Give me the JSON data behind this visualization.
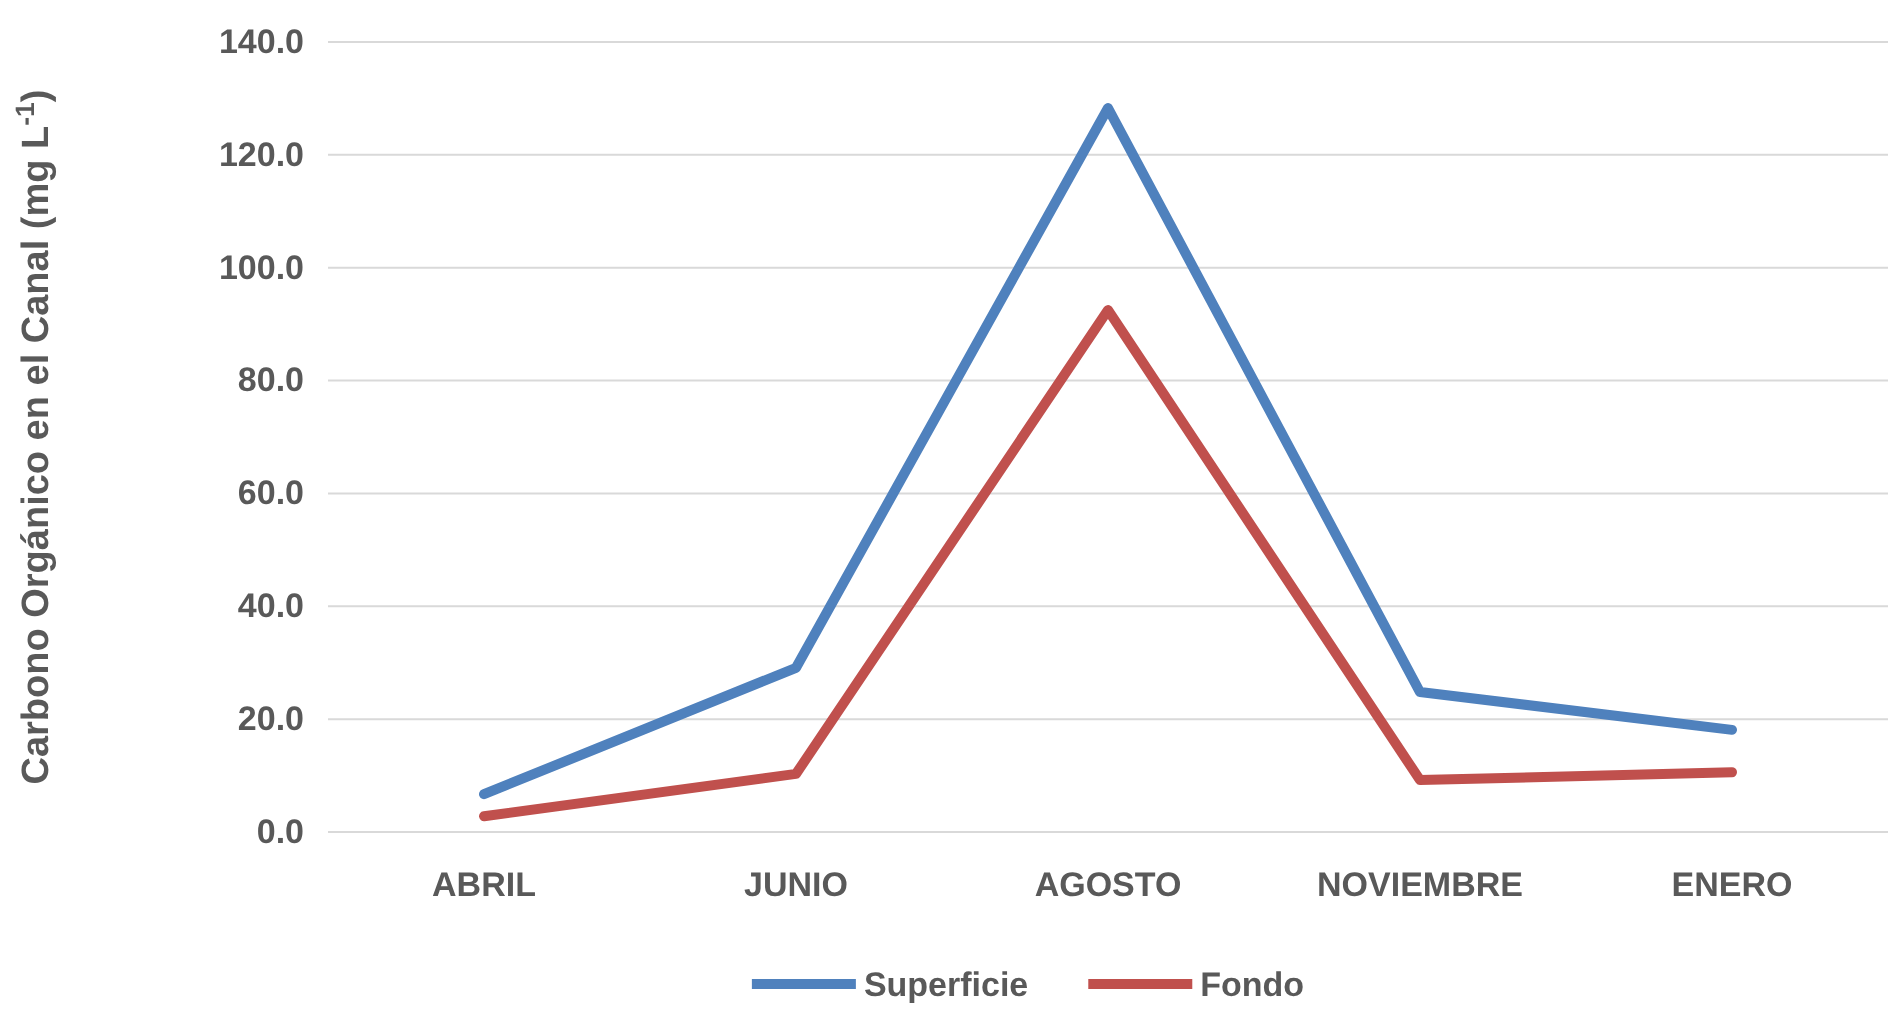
{
  "chart_data": {
    "type": "line",
    "ylabel": "Carbono Orgánico en el Canal (mg L$^{-1}$)",
    "categories": [
      "ABRIL",
      "JUNIO",
      "AGOSTO",
      "NOVIEMBRE",
      "ENERO"
    ],
    "series": [
      {
        "name": "Superficie",
        "color": "#4f81bd",
        "values": [
          6.7,
          29.1,
          128.3,
          24.8,
          18.1
        ]
      },
      {
        "name": "Fondo",
        "color": "#c0504d",
        "values": [
          2.8,
          10.3,
          92.5,
          9.2,
          10.6
        ]
      }
    ],
    "ylim": [
      0,
      140
    ],
    "yticks": [
      {
        "value": 0,
        "label": "0.0"
      },
      {
        "value": 20,
        "label": "20.0"
      },
      {
        "value": 40,
        "label": "40.0"
      },
      {
        "value": 60,
        "label": "60.0"
      },
      {
        "value": 80,
        "label": "80.0"
      },
      {
        "value": 100,
        "label": "100.0"
      },
      {
        "value": 120,
        "label": "120.0"
      },
      {
        "value": 140,
        "label": "140.0"
      }
    ],
    "grid": "y",
    "legend": "bottom",
    "marker": "none",
    "line_style": "solid"
  }
}
